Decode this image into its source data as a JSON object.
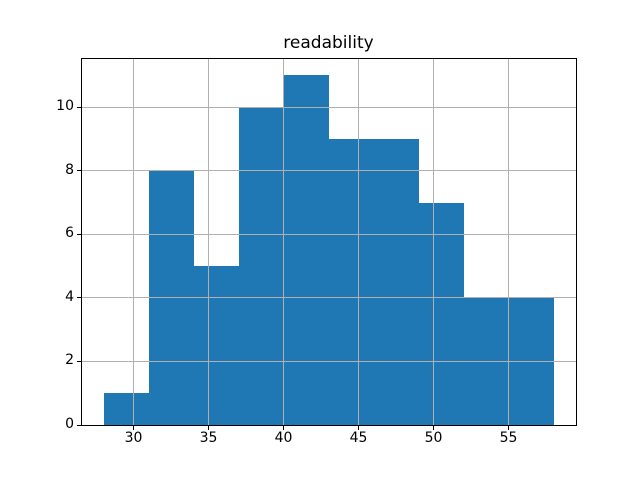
{
  "chart_data": {
    "type": "bar",
    "subtype": "histogram",
    "title": "readability",
    "bin_edges": [
      28,
      31,
      34,
      37,
      40,
      43,
      46,
      49,
      52,
      55,
      58
    ],
    "counts": [
      1,
      8,
      5,
      10,
      11,
      9,
      9,
      7,
      4,
      4
    ],
    "x_ticks": [
      30,
      35,
      40,
      45,
      50,
      55
    ],
    "y_ticks": [
      0,
      2,
      4,
      6,
      8,
      10
    ],
    "xlim": [
      26.5,
      59.5
    ],
    "ylim": [
      0,
      11.55
    ],
    "xlabel": "",
    "ylabel": "",
    "grid": true,
    "grid_above_bars": true,
    "legend": "none",
    "bar_color": "#1f77b4",
    "grid_color": "#b0b0b0",
    "spine_color": "#000000",
    "background_color": "#ffffff",
    "text_color": "#000000"
  }
}
